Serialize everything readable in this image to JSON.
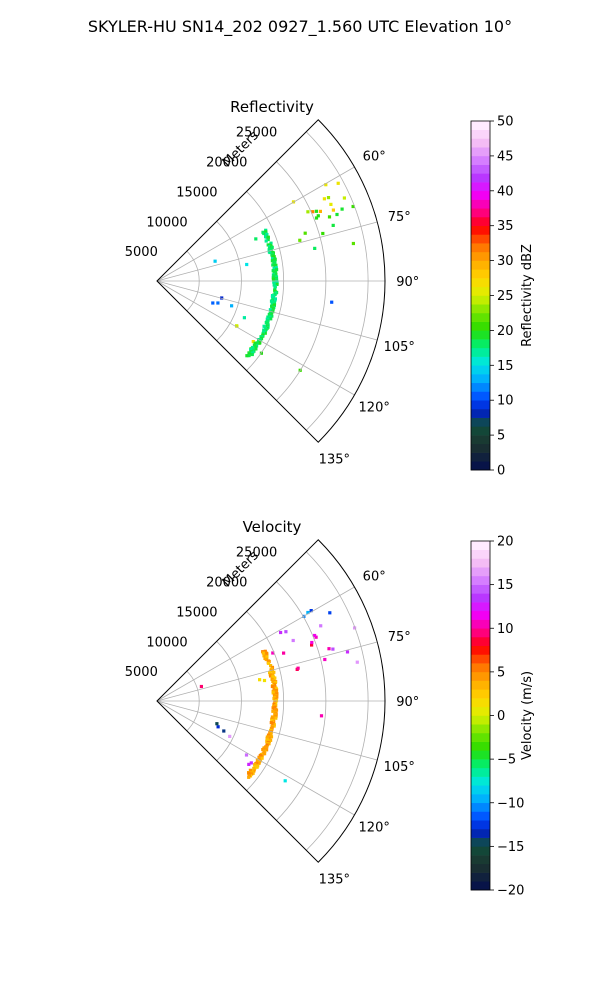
{
  "suptitle": "SKYLER-HU  SN14_202  0927_1.560 UTC Elevation 10°",
  "chart_data": [
    {
      "type": "polar-sector",
      "title": "Reflectivity",
      "range_label": "Meters",
      "range_ticks": [
        5000,
        10000,
        15000,
        20000,
        25000
      ],
      "range_tick_labels": [
        "5000",
        "10000",
        "15000",
        "20000",
        "25000"
      ],
      "azimuth_range": [
        45,
        135
      ],
      "azimuth_ticks": [
        60,
        75,
        90,
        105,
        120,
        135
      ],
      "azimuth_tick_labels": [
        "60°",
        "75°",
        "90°",
        "105°",
        "120°",
        "135°"
      ],
      "range_max": 27000,
      "grid": true,
      "colorbar": {
        "label": "Reflectivity dBZ",
        "range": [
          0,
          50
        ],
        "ticks": [
          0,
          5,
          10,
          15,
          20,
          25,
          30,
          35,
          40,
          45,
          50
        ],
        "tick_labels": [
          "0",
          "5",
          "10",
          "15",
          "20",
          "25",
          "30",
          "35",
          "40",
          "45",
          "50"
        ]
      },
      "echo_regions": [
        {
          "az": [
            57,
            67
          ],
          "r": [
            17000,
            25000
          ],
          "value": 25
        },
        {
          "az": [
            63,
            70
          ],
          "r": [
            19000,
            23000
          ],
          "value": 30
        },
        {
          "az": [
            66,
            73
          ],
          "r": [
            17500,
            26000
          ],
          "value": 20
        },
        {
          "az": [
            68,
            71
          ],
          "r": [
            23000,
            26000
          ],
          "value": 15
        },
        {
          "az": [
            73,
            80
          ],
          "r": [
            17000,
            24500
          ],
          "value": 20
        },
        {
          "az": [
            66,
            70
          ],
          "r": [
            10500,
            13500
          ],
          "value": 18
        },
        {
          "az": [
            70,
            75
          ],
          "r": [
            5500,
            7500
          ],
          "value": 15
        },
        {
          "az": [
            76,
            80
          ],
          "r": [
            10500,
            13000
          ],
          "value": 15
        },
        {
          "az": [
            84,
            87
          ],
          "r": [
            13000,
            16000
          ],
          "value": 18
        },
        {
          "az": [
            95,
            98
          ],
          "r": [
            19000,
            21000
          ],
          "value": 12
        },
        {
          "az": [
            104,
            108
          ],
          "r": [
            5500,
            8000
          ],
          "value": 8
        },
        {
          "az": [
            108,
            115
          ],
          "r": [
            7000,
            10000
          ],
          "value": 12
        },
        {
          "az": [
            112,
            118
          ],
          "r": [
            9500,
            12000
          ],
          "value": 15
        },
        {
          "az": [
            117,
            123
          ],
          "r": [
            10000,
            13500
          ],
          "value": 25
        },
        {
          "az": [
            123,
            128
          ],
          "r": [
            12500,
            16000
          ],
          "value": 20
        },
        {
          "az": [
            119,
            122
          ],
          "r": [
            17500,
            20000
          ],
          "value": 20
        }
      ],
      "echo_arc": {
        "az": [
          65,
          130
        ],
        "r": 14000,
        "value": 18
      }
    },
    {
      "type": "polar-sector",
      "title": "Velocity",
      "range_label": "Meters",
      "range_ticks": [
        5000,
        10000,
        15000,
        20000,
        25000
      ],
      "range_tick_labels": [
        "5000",
        "10000",
        "15000",
        "20000",
        "25000"
      ],
      "azimuth_range": [
        45,
        135
      ],
      "azimuth_ticks": [
        60,
        75,
        90,
        105,
        120,
        135
      ],
      "azimuth_tick_labels": [
        "60°",
        "75°",
        "90°",
        "105°",
        "120°",
        "135°"
      ],
      "range_max": 27000,
      "grid": true,
      "colorbar": {
        "label": "Velocity (m/s)",
        "range": [
          -20,
          20
        ],
        "ticks": [
          -20,
          -15,
          -10,
          -5,
          0,
          5,
          10,
          15,
          20
        ],
        "tick_labels": [
          "−20",
          "−15",
          "−10",
          "−5",
          "0",
          "5",
          "10",
          "15",
          "20"
        ]
      },
      "echo_regions": [
        {
          "az": [
            57,
            63
          ],
          "r": [
            20000,
            25500
          ],
          "value": -11
        },
        {
          "az": [
            61,
            67
          ],
          "r": [
            16000,
            22000
          ],
          "value": 15
        },
        {
          "az": [
            66,
            72
          ],
          "r": [
            13000,
            20500
          ],
          "value": 10
        },
        {
          "az": [
            68,
            71
          ],
          "r": [
            23000,
            26000
          ],
          "value": 15
        },
        {
          "az": [
            73,
            80
          ],
          "r": [
            17000,
            21500
          ],
          "value": 10
        },
        {
          "az": [
            73,
            80
          ],
          "r": [
            20500,
            24500
          ],
          "value": 15
        },
        {
          "az": [
            70,
            75
          ],
          "r": [
            5500,
            7500
          ],
          "value": 10
        },
        {
          "az": [
            76,
            80
          ],
          "r": [
            10500,
            13500
          ],
          "value": 3
        },
        {
          "az": [
            84,
            87
          ],
          "r": [
            13000,
            16000
          ],
          "value": -3
        },
        {
          "az": [
            95,
            98
          ],
          "r": [
            19000,
            21000
          ],
          "value": 10
        },
        {
          "az": [
            104,
            108
          ],
          "r": [
            5500,
            8000
          ],
          "value": -11
        },
        {
          "az": [
            108,
            115
          ],
          "r": [
            7000,
            10000
          ],
          "value": -13
        },
        {
          "az": [
            112,
            118
          ],
          "r": [
            9500,
            12000
          ],
          "value": 15
        },
        {
          "az": [
            117,
            123
          ],
          "r": [
            10000,
            13500
          ],
          "value": 15
        },
        {
          "az": [
            123,
            128
          ],
          "r": [
            12500,
            16000
          ],
          "value": 15
        },
        {
          "az": [
            119,
            122
          ],
          "r": [
            17500,
            20000
          ],
          "value": -8
        }
      ],
      "echo_arc": {
        "az": [
          65,
          130
        ],
        "r": 14000,
        "value": 4
      }
    }
  ]
}
